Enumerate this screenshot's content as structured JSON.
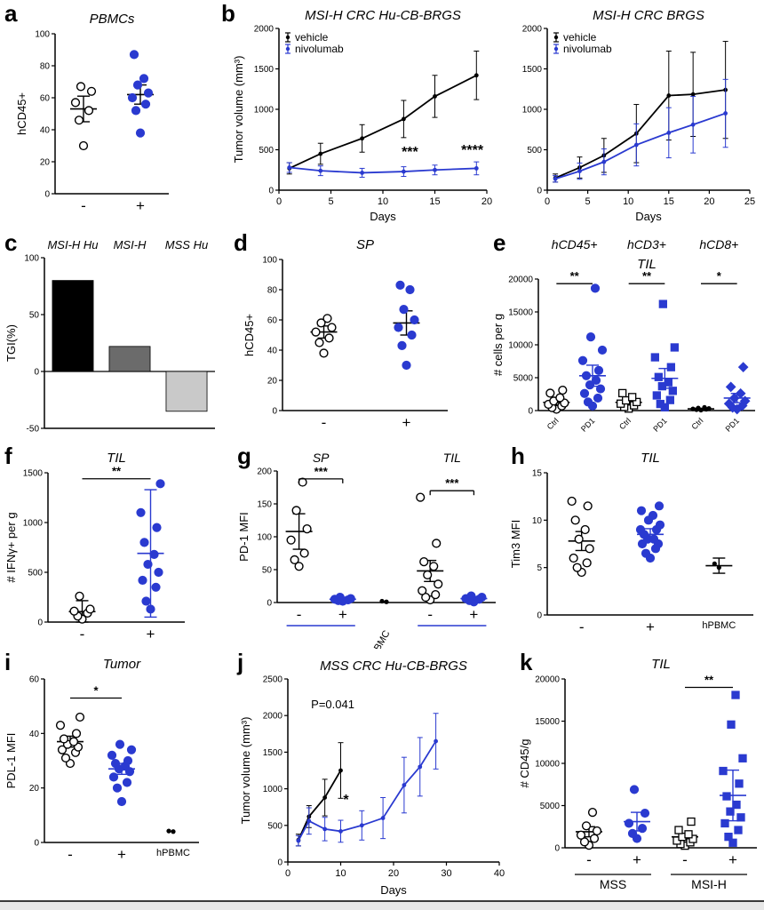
{
  "panels": {
    "a": {
      "letter": "a"
    },
    "b": {
      "letter": "b"
    },
    "c": {
      "letter": "c"
    },
    "d": {
      "letter": "d"
    },
    "e": {
      "letter": "e"
    },
    "f": {
      "letter": "f"
    },
    "g": {
      "letter": "g"
    },
    "h": {
      "letter": "h"
    },
    "i": {
      "letter": "i"
    },
    "j": {
      "letter": "j"
    },
    "k": {
      "letter": "k"
    }
  },
  "colors": {
    "nivolumab_blue": "#2a3ad0",
    "vehicle_black": "#000000",
    "bar_dark_gray": "#6b6b6b",
    "bar_light_gray": "#c9c9c9"
  },
  "chart_data": {
    "a": {
      "type": "scatter",
      "title": "PBMCs",
      "ylabel": "hCD45+",
      "ylim": [
        0,
        100
      ],
      "yticks": [
        0,
        20,
        40,
        60,
        80,
        100
      ],
      "groups": [
        {
          "label": "-",
          "shape": "circle",
          "fill": "open",
          "color": "#000000",
          "values": [
            30,
            46,
            52,
            57,
            64,
            67
          ],
          "mean": 53,
          "err": 8
        },
        {
          "label": "+",
          "shape": "circle",
          "fill": "solid",
          "color": "#2a3ad0",
          "lineColor": "#000000",
          "values": [
            38,
            52,
            56,
            60,
            63,
            68,
            72,
            87
          ],
          "mean": 62,
          "err": 6
        }
      ]
    },
    "b_left": {
      "type": "line",
      "title": "MSI-H CRC Hu-CB-BRGS",
      "xlabel": "Days",
      "ylabel": "Tumor volume (mm³)",
      "xlim": [
        0,
        20
      ],
      "ylim": [
        0,
        2000
      ],
      "xticks": [
        0,
        5,
        10,
        15,
        20
      ],
      "yticks": [
        0,
        500,
        1000,
        1500,
        2000
      ],
      "legend": true,
      "series": [
        {
          "name": "vehicle",
          "color": "#000000",
          "x": [
            1,
            4,
            8,
            12,
            15,
            19
          ],
          "y": [
            270,
            450,
            640,
            880,
            1160,
            1420
          ],
          "err": [
            70,
            130,
            170,
            230,
            260,
            300
          ]
        },
        {
          "name": "nivolumab",
          "color": "#2a3ad0",
          "x": [
            1,
            4,
            8,
            12,
            15,
            19
          ],
          "y": [
            280,
            240,
            215,
            230,
            250,
            270
          ],
          "err": [
            60,
            60,
            55,
            60,
            60,
            80
          ]
        }
      ],
      "annotations": [
        {
          "x": 12.6,
          "y": 420,
          "text": "***",
          "bold": true
        },
        {
          "x": 18.6,
          "y": 440,
          "text": "****",
          "bold": true
        }
      ]
    },
    "b_right": {
      "type": "line",
      "title": "MSI-H CRC BRGS",
      "xlabel": "Days",
      "ylabel": "",
      "xlim": [
        0,
        25
      ],
      "ylim": [
        0,
        2000
      ],
      "xticks": [
        0,
        5,
        10,
        15,
        20,
        25
      ],
      "yticks": [
        0,
        500,
        1000,
        1500,
        2000
      ],
      "legend": true,
      "series": [
        {
          "name": "vehicle",
          "color": "#000000",
          "x": [
            1,
            4,
            7,
            11,
            15,
            18,
            22
          ],
          "y": [
            150,
            280,
            430,
            700,
            1170,
            1185,
            1240
          ],
          "err": [
            50,
            130,
            210,
            360,
            550,
            520,
            600
          ]
        },
        {
          "name": "nivolumab",
          "color": "#2a3ad0",
          "x": [
            1,
            4,
            7,
            11,
            15,
            18,
            22
          ],
          "y": [
            140,
            235,
            350,
            560,
            710,
            810,
            950
          ],
          "err": [
            40,
            100,
            160,
            260,
            310,
            350,
            420
          ]
        }
      ]
    },
    "c": {
      "type": "bar",
      "ylabel": "TGI(%)",
      "ylim": [
        -50,
        100
      ],
      "yticks": [
        -50,
        0,
        50,
        100
      ],
      "bars": [
        {
          "label": "MSI-H Hu",
          "value": 80,
          "color": "#000000"
        },
        {
          "label": "MSI-H",
          "value": 22,
          "color": "#6b6b6b"
        },
        {
          "label": "MSS Hu",
          "value": -35,
          "color": "#c9c9c9"
        }
      ]
    },
    "d": {
      "type": "scatter",
      "title": "SP",
      "ylabel": "hCD45+",
      "ylim": [
        0,
        100
      ],
      "yticks": [
        0,
        20,
        40,
        60,
        80,
        100
      ],
      "groups": [
        {
          "label": "-",
          "shape": "circle",
          "fill": "open",
          "color": "#000000",
          "values": [
            38,
            45,
            48,
            52,
            55,
            58,
            61
          ],
          "mean": 52,
          "err": 4
        },
        {
          "label": "+",
          "shape": "circle",
          "fill": "solid",
          "color": "#2a3ad0",
          "lineColor": "#000000",
          "values": [
            30,
            43,
            50,
            55,
            60,
            67,
            80,
            83
          ],
          "mean": 58,
          "err": 8
        }
      ]
    },
    "e": {
      "type": "scatter",
      "title": "TIL",
      "ylabel": "# cells per g",
      "ylim": [
        0,
        20000
      ],
      "yticks": [
        0,
        5000,
        10000,
        15000,
        20000
      ],
      "labelRotate": -45,
      "headers": [
        {
          "label": "hCD45+",
          "from": 0,
          "to": 1
        },
        {
          "label": "hCD3+",
          "from": 2,
          "to": 3
        },
        {
          "label": "hCD8+",
          "from": 4,
          "to": 5
        }
      ],
      "groups": [
        {
          "label": "Ctrl",
          "shape": "circle",
          "fill": "open",
          "color": "#000000",
          "values": [
            200,
            450,
            700,
            950,
            1150,
            1450,
            1950,
            2650,
            3100
          ],
          "mean": 1250,
          "err": 420
        },
        {
          "label": "PD1",
          "shape": "circle",
          "fill": "solid",
          "color": "#2a3ad0",
          "lineColor": "#2a3ad0",
          "values": [
            700,
            1300,
            1900,
            2600,
            3300,
            3900,
            4600,
            5300,
            6100,
            7600,
            9200,
            11200,
            18600
          ],
          "mean": 5300,
          "err": 1600
        },
        {
          "label": "Ctrl",
          "shape": "square",
          "fill": "open",
          "color": "#000000",
          "values": [
            300,
            550,
            800,
            1050,
            1300,
            1550,
            2050,
            2650
          ],
          "mean": 1250,
          "err": 380
        },
        {
          "label": "PD1",
          "shape": "square",
          "fill": "solid",
          "color": "#2a3ad0",
          "lineColor": "#2a3ad0",
          "values": [
            500,
            1000,
            1600,
            2300,
            3000,
            3700,
            4300,
            5100,
            6600,
            8100,
            9600,
            16200
          ],
          "mean": 4900,
          "err": 1500
        },
        {
          "label": "Ctrl",
          "shape": "dot",
          "fill": "solid",
          "color": "#000000",
          "values": [
            60,
            130,
            190,
            250,
            320,
            400,
            490
          ],
          "mean": 260,
          "err": 90
        },
        {
          "label": "PD1",
          "shape": "diamond",
          "fill": "solid",
          "color": "#2a3ad0",
          "lineColor": "#2a3ad0",
          "values": [
            200,
            450,
            750,
            1050,
            1450,
            1900,
            2600,
            3600,
            6600
          ],
          "mean": 1900,
          "err": 700
        }
      ],
      "sig": [
        {
          "from": 0,
          "to": 1,
          "y": 19300,
          "label": "**"
        },
        {
          "from": 2,
          "to": 3,
          "y": 19300,
          "label": "**"
        },
        {
          "from": 4,
          "to": 5,
          "y": 19300,
          "label": "*"
        }
      ]
    },
    "f": {
      "type": "scatter",
      "title": "TIL",
      "ylabel": "# IFNγ+  per g",
      "ylim": [
        0,
        1500
      ],
      "yticks": [
        0,
        500,
        1000,
        1500
      ],
      "groups": [
        {
          "label": "-",
          "shape": "circle",
          "fill": "open",
          "color": "#000000",
          "values": [
            30,
            60,
            90,
            110,
            130,
            260
          ],
          "mean": 105,
          "err": 110
        },
        {
          "label": "+",
          "shape": "circle",
          "fill": "solid",
          "color": "#2a3ad0",
          "lineColor": "#2a3ad0",
          "values": [
            130,
            210,
            350,
            420,
            500,
            580,
            680,
            800,
            950,
            1100,
            1390
          ],
          "mean": 690,
          "err": 640
        }
      ],
      "sig": [
        {
          "from": 0,
          "to": 1,
          "y": 1440,
          "label": "**"
        }
      ]
    },
    "g": {
      "type": "scatter",
      "ylabel": "PD-1 MFI",
      "ylim": [
        0,
        200
      ],
      "yticks": [
        0,
        50,
        100,
        150,
        200
      ],
      "headers": [
        {
          "label": "SP",
          "from": 0,
          "to": 1
        },
        {
          "label": "TIL",
          "from": 3,
          "to": 4
        }
      ],
      "groups": [
        {
          "label": "-",
          "shape": "circle",
          "fill": "open",
          "color": "#000000",
          "values": [
            55,
            65,
            75,
            95,
            112,
            140,
            183
          ],
          "mean": 108,
          "err": 27
        },
        {
          "label": "+",
          "shape": "circle",
          "fill": "solid",
          "color": "#2a3ad0",
          "lineColor": "#2a3ad0",
          "values": [
            2,
            3,
            4,
            5,
            6,
            8
          ],
          "mean": 5,
          "err": 3
        },
        {
          "label": "hPBMC",
          "rotate": true,
          "shape": "dot",
          "fill": "solid",
          "color": "#000000",
          "values": [
            1,
            2
          ]
        },
        {
          "label": "-",
          "shape": "circle",
          "fill": "open",
          "color": "#000000",
          "values": [
            4,
            8,
            12,
            18,
            28,
            42,
            55,
            62,
            90,
            160
          ],
          "mean": 48,
          "err": 16
        },
        {
          "label": "+",
          "shape": "circle",
          "fill": "solid",
          "color": "#2a3ad0",
          "lineColor": "#2a3ad0",
          "values": [
            1,
            3,
            5,
            6,
            8,
            10
          ],
          "mean": 6,
          "err": 3
        }
      ],
      "sig": [
        {
          "from": 0,
          "to": 1,
          "y": 188,
          "label": "***",
          "bracket": true
        },
        {
          "from": 3,
          "to": 4,
          "y": 170,
          "label": "***",
          "bracket": true
        }
      ],
      "underlines": [
        {
          "from": 0,
          "to": 1,
          "color": "#2a3ad0"
        },
        {
          "from": 3,
          "to": 4,
          "color": "#2a3ad0"
        }
      ]
    },
    "h": {
      "type": "scatter",
      "title": "TIL",
      "ylabel": "Tim3 MFI",
      "ylim": [
        0,
        15
      ],
      "yticks": [
        0,
        5,
        10,
        15
      ],
      "groups": [
        {
          "label": "-",
          "shape": "circle",
          "fill": "open",
          "color": "#000000",
          "values": [
            4.5,
            5,
            5.5,
            6,
            7,
            8,
            9,
            10,
            11.5,
            12
          ],
          "mean": 7.8,
          "err": 1
        },
        {
          "label": "+",
          "shape": "circle",
          "fill": "solid",
          "color": "#2a3ad0",
          "lineColor": "#2a3ad0",
          "values": [
            6,
            6.5,
            7,
            7.5,
            7.5,
            8,
            8,
            8.5,
            9,
            9,
            9.5,
            10,
            10.5,
            11,
            11.5
          ],
          "mean": 8.5,
          "err": 0.6
        },
        {
          "label": "hPBMC",
          "shape": "dot",
          "fill": "solid",
          "color": "#000000",
          "values": [
            5,
            5.4
          ],
          "mean": 5.2,
          "err": 0.8
        }
      ]
    },
    "i": {
      "type": "scatter",
      "title": "Tumor",
      "ylabel": "PDL-1 MFI",
      "ylim": [
        0,
        60
      ],
      "yticks": [
        0,
        20,
        40,
        60
      ],
      "groups": [
        {
          "label": "-",
          "shape": "circle",
          "fill": "open",
          "color": "#000000",
          "values": [
            29,
            31,
            33,
            34,
            35,
            36,
            37,
            38,
            40,
            43,
            46
          ],
          "mean": 37,
          "err": 2
        },
        {
          "label": "+",
          "shape": "circle",
          "fill": "solid",
          "color": "#2a3ad0",
          "lineColor": "#2a3ad0",
          "values": [
            15,
            20,
            22,
            24,
            26,
            27,
            28,
            29,
            30,
            32,
            34,
            36
          ],
          "mean": 27,
          "err": 2
        },
        {
          "label": "hPBMC",
          "shape": "dot",
          "fill": "solid",
          "color": "#000000",
          "values": [
            4,
            4.2
          ]
        }
      ],
      "sig": [
        {
          "from": 0,
          "to": 1,
          "y": 53,
          "label": "*"
        }
      ]
    },
    "j": {
      "type": "line",
      "title": "MSS CRC Hu-CB-BRGS",
      "xlabel": "Days",
      "ylabel": "Tumor volume (mm³)",
      "xlim": [
        0,
        40
      ],
      "ylim": [
        0,
        2500
      ],
      "xticks": [
        0,
        10,
        20,
        30,
        40
      ],
      "yticks": [
        0,
        500,
        1000,
        1500,
        2000,
        2500
      ],
      "series": [
        {
          "name": "vehicle",
          "color": "#000000",
          "x": [
            2,
            4,
            7,
            10
          ],
          "y": [
            300,
            620,
            880,
            1250
          ],
          "err": [
            80,
            150,
            250,
            380
          ]
        },
        {
          "name": "nivolumab",
          "color": "#2a3ad0",
          "x": [
            2,
            4,
            7,
            10,
            14,
            18,
            22,
            25,
            28
          ],
          "y": [
            290,
            560,
            450,
            420,
            500,
            600,
            1050,
            1300,
            1650
          ],
          "err": [
            70,
            180,
            160,
            150,
            200,
            280,
            380,
            400,
            380
          ]
        }
      ],
      "annotations": [
        {
          "x": 8.5,
          "y": 2100,
          "text": "P=0.041",
          "fs": 13
        },
        {
          "x": 11,
          "y": 790,
          "text": "*",
          "bold": true
        }
      ]
    },
    "k": {
      "type": "scatter",
      "title": "TIL",
      "ylabel": "# CD45/g",
      "ylim": [
        0,
        20000
      ],
      "yticks": [
        0,
        5000,
        10000,
        15000,
        20000
      ],
      "groups": [
        {
          "label": "-",
          "shape": "circle",
          "fill": "open",
          "color": "#000000",
          "values": [
            300,
            700,
            1100,
            1500,
            2000,
            2600,
            4200
          ],
          "mean": 1900,
          "err": 600
        },
        {
          "label": "+",
          "shape": "circle",
          "fill": "solid",
          "color": "#2a3ad0",
          "lineColor": "#2a3ad0",
          "values": [
            1100,
            1700,
            2300,
            2900,
            4100,
            6900
          ],
          "mean": 3100,
          "err": 1100
        },
        {
          "label": "-",
          "shape": "square",
          "fill": "open",
          "color": "#000000",
          "values": [
            250,
            450,
            650,
            850,
            1050,
            1300,
            1600,
            2100,
            3100
          ],
          "mean": 1300,
          "err": 350
        },
        {
          "label": "+",
          "shape": "square",
          "fill": "solid",
          "color": "#2a3ad0",
          "lineColor": "#2a3ad0",
          "values": [
            600,
            1300,
            2100,
            2900,
            3600,
            4300,
            5100,
            6100,
            7600,
            9100,
            10600,
            14600,
            18100
          ],
          "mean": 6200,
          "err": 3000
        }
      ],
      "sig": [
        {
          "from": 2,
          "to": 3,
          "y": 19000,
          "label": "**"
        }
      ],
      "bottom_groups": [
        {
          "label": "MSS",
          "from": 0,
          "to": 1
        },
        {
          "label": "MSI-H",
          "from": 2,
          "to": 3
        }
      ]
    }
  }
}
